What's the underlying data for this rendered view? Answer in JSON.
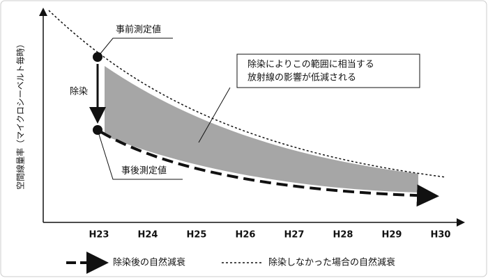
{
  "y_axis_label": "空間線量率（マイクロシーベルト毎時）",
  "categories": [
    "H23",
    "H24",
    "H25",
    "H26",
    "H27",
    "H28",
    "H29",
    "H30"
  ],
  "annotations": {
    "before": "事前測定値",
    "after": "事後測定値",
    "decontamination": "除染",
    "callout": [
      "除染によりこの範囲に相当する",
      "放射線の影響が低減される"
    ]
  },
  "legend": [
    "除染後の自然減衰",
    "除染しなかった場合の自然減衰"
  ]
}
